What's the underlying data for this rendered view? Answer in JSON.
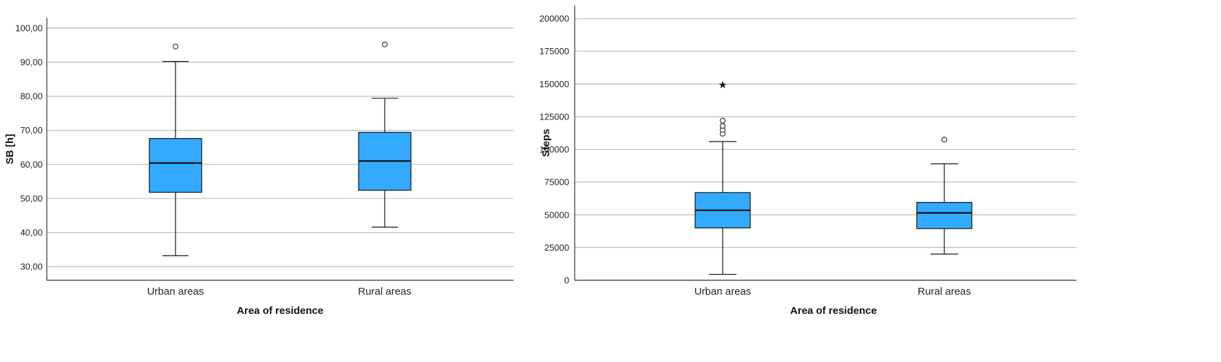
{
  "chart_data": [
    {
      "type": "boxplot",
      "title": "",
      "xlabel": "Area of residence",
      "ylabel": "SB [h]",
      "ylim": [
        26,
        103
      ],
      "yticks": [
        "30,00",
        "40,00",
        "50,00",
        "60,00",
        "70,00",
        "80,00",
        "90,00",
        "100,00"
      ],
      "ytick_values": [
        30,
        40,
        50,
        60,
        70,
        80,
        90,
        100
      ],
      "grid": true,
      "color": "#33aaff",
      "categories": [
        "Urban areas",
        "Rural areas"
      ],
      "boxes": [
        {
          "whisker_low": 33.2,
          "q1": 51.8,
          "median": 60.4,
          "q3": 67.6,
          "whisker_high": 90.2,
          "outliers": [
            {
              "value": 94.6,
              "marker": "circle"
            }
          ]
        },
        {
          "whisker_low": 41.6,
          "q1": 52.4,
          "median": 61.0,
          "q3": 69.4,
          "whisker_high": 79.4,
          "outliers": [
            {
              "value": 95.2,
              "marker": "circle"
            }
          ]
        }
      ]
    },
    {
      "type": "boxplot",
      "title": "",
      "xlabel": "Area of residence",
      "ylabel": "Steps",
      "ylim": [
        0,
        210000
      ],
      "yticks": [
        "0",
        "25000",
        "50000",
        "75000",
        "100000",
        "125000",
        "150000",
        "175000",
        "200000"
      ],
      "ytick_values": [
        0,
        25000,
        50000,
        75000,
        100000,
        125000,
        150000,
        175000,
        200000
      ],
      "grid": true,
      "color": "#33aaff",
      "categories": [
        "Urban areas",
        "Rural areas"
      ],
      "boxes": [
        {
          "whisker_low": 4500,
          "q1": 40000,
          "median": 53500,
          "q3": 67000,
          "whisker_high": 106000,
          "outliers": [
            {
              "value": 112000,
              "marker": "circle"
            },
            {
              "value": 115000,
              "marker": "circle"
            },
            {
              "value": 118000,
              "marker": "circle"
            },
            {
              "value": 122000,
              "marker": "circle"
            },
            {
              "value": 150000,
              "marker": "star"
            }
          ]
        },
        {
          "whisker_low": 20000,
          "q1": 39500,
          "median": 51500,
          "q3": 59500,
          "whisker_high": 89000,
          "outliers": [
            {
              "value": 107500,
              "marker": "circle"
            }
          ]
        }
      ]
    }
  ]
}
